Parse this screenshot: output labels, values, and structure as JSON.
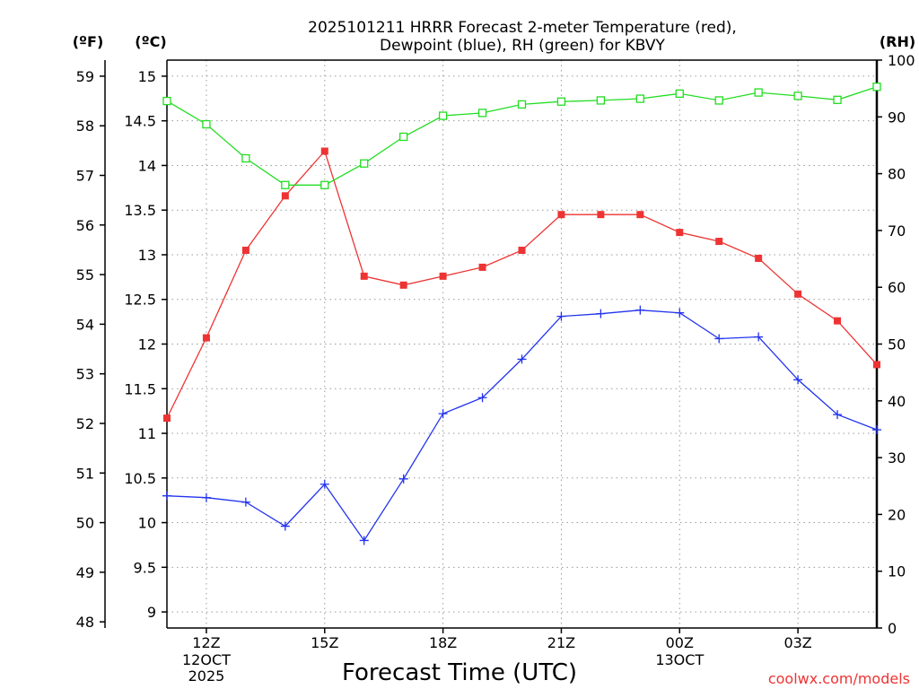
{
  "chart_data": {
    "type": "line",
    "title_lines": [
      "2025101211 HRRR Forecast 2-meter Temperature (red),",
      "Dewpoint (blue), RH (green) for KBVY"
    ],
    "xlabel": "Forecast Time (UTC)",
    "watermark": "coolwx.com/models",
    "unit_labels": {
      "fahrenheit": "(ºF)",
      "celsius": "(ºC)",
      "rh": "(RH)"
    },
    "x_hours": [
      11,
      12,
      13,
      14,
      15,
      16,
      17,
      18,
      19,
      20,
      21,
      22,
      23,
      24,
      25,
      26,
      27,
      28,
      29
    ],
    "x_range": [
      11,
      29
    ],
    "x_ticks": [
      {
        "hour": 12,
        "label": "12Z",
        "sub1": "12OCT",
        "sub2": "2025"
      },
      {
        "hour": 15,
        "label": "15Z",
        "sub1": "",
        "sub2": ""
      },
      {
        "hour": 18,
        "label": "18Z",
        "sub1": "",
        "sub2": ""
      },
      {
        "hour": 21,
        "label": "21Z",
        "sub1": "",
        "sub2": ""
      },
      {
        "hour": 24,
        "label": "00Z",
        "sub1": "13OCT",
        "sub2": ""
      },
      {
        "hour": 27,
        "label": "03Z",
        "sub1": "",
        "sub2": ""
      }
    ],
    "celsius_range": [
      8.82,
      15.18
    ],
    "celsius_ticks": [
      "9",
      "9.5",
      "10",
      "10.5",
      "11",
      "11.5",
      "12",
      "12.5",
      "13",
      "13.5",
      "14",
      "14.5",
      "15"
    ],
    "fahrenheit_ticks": [
      "48",
      "49",
      "50",
      "51",
      "52",
      "53",
      "54",
      "55",
      "56",
      "57",
      "58",
      "59"
    ],
    "rh_range": [
      0,
      100
    ],
    "rh_ticks": [
      "0",
      "10",
      "20",
      "30",
      "40",
      "50",
      "60",
      "70",
      "80",
      "90",
      "100"
    ],
    "series": [
      {
        "name": "2-meter Temperature",
        "color": "#ee3333",
        "marker": "filled-square",
        "axis": "celsius",
        "values": [
          11.17,
          12.07,
          13.05,
          13.66,
          14.16,
          12.76,
          12.66,
          12.76,
          12.86,
          13.05,
          13.45,
          13.45,
          13.45,
          13.25,
          13.15,
          12.96,
          12.56,
          12.26,
          11.77
        ]
      },
      {
        "name": "Dewpoint",
        "color": "#2233ee",
        "marker": "plus",
        "axis": "celsius",
        "values": [
          10.3,
          10.28,
          10.23,
          9.96,
          10.43,
          9.8,
          10.49,
          11.22,
          11.4,
          11.83,
          12.31,
          12.34,
          12.38,
          12.35,
          12.06,
          12.08,
          11.6,
          11.21,
          11.04
        ]
      },
      {
        "name": "RH",
        "color": "#22dd22",
        "marker": "open-square",
        "axis": "rh",
        "values": [
          92.8,
          88.7,
          82.7,
          78.0,
          78.0,
          81.8,
          86.5,
          90.2,
          90.7,
          92.2,
          92.7,
          92.9,
          93.2,
          94.1,
          92.9,
          94.3,
          93.7,
          93.0,
          95.3
        ]
      }
    ]
  }
}
